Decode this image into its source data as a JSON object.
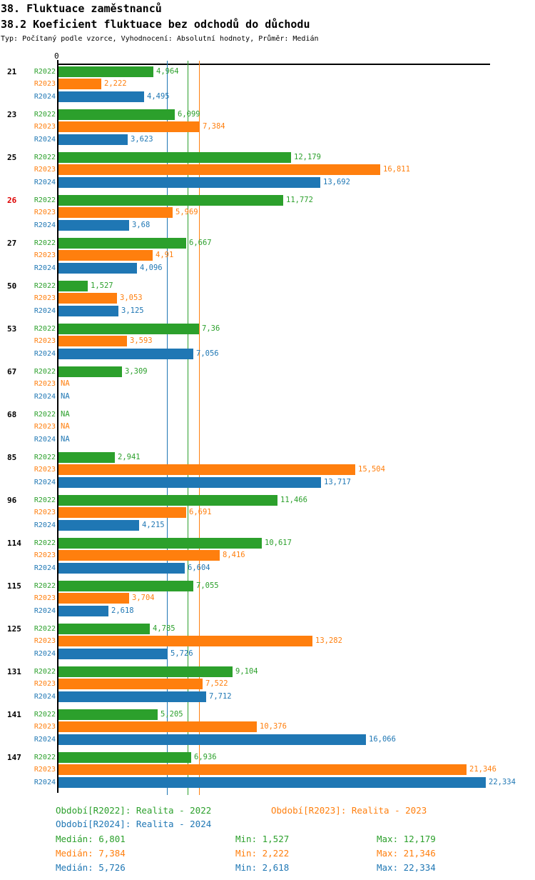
{
  "header": {
    "title": "38. Fluktuace zaměstnanců",
    "subtitle": "38.2 Koeficient fluktuace bez odchodů do důchodu",
    "meta": "Typ: Počítaný podle vzorce, Vyhodnocení: Absolutní hodnoty, Průměr: Medián"
  },
  "colors": {
    "r2022": "#2ca02c",
    "r2023": "#ff7f0e",
    "r2024": "#1f77b4",
    "highlight": "#dd0000",
    "axis": "#000000"
  },
  "chart_data": {
    "type": "bar",
    "orientation": "horizontal",
    "title": "38.2 Koeficient fluktuace bez odchodů do důchodu",
    "axis_zero_label": "0",
    "xlim": [
      0,
      22.6
    ],
    "grid": false,
    "series_names": [
      "R2022",
      "R2023",
      "R2024"
    ],
    "reference_lines": [
      {
        "series_index": 2,
        "value": 5.726,
        "meaning": "Medián R2024"
      },
      {
        "series_index": 0,
        "value": 6.801,
        "meaning": "Medián R2022"
      },
      {
        "series_index": 1,
        "value": 7.384,
        "meaning": "Medián R2023"
      }
    ],
    "groups": [
      {
        "id": "21",
        "highlight": false,
        "values": [
          4.964,
          2.222,
          4.495
        ],
        "labels": [
          "4,964",
          "2,222",
          "4,495"
        ]
      },
      {
        "id": "23",
        "highlight": false,
        "values": [
          6.099,
          7.384,
          3.623
        ],
        "labels": [
          "6,099",
          "7,384",
          "3,623"
        ]
      },
      {
        "id": "25",
        "highlight": false,
        "values": [
          12.179,
          16.811,
          13.692
        ],
        "labels": [
          "12,179",
          "16,811",
          "13,692"
        ]
      },
      {
        "id": "26",
        "highlight": true,
        "values": [
          11.772,
          5.969,
          3.68
        ],
        "labels": [
          "11,772",
          "5,969",
          "3,68"
        ]
      },
      {
        "id": "27",
        "highlight": false,
        "values": [
          6.667,
          4.91,
          4.096
        ],
        "labels": [
          "6,667",
          "4,91",
          "4,096"
        ]
      },
      {
        "id": "50",
        "highlight": false,
        "values": [
          1.527,
          3.053,
          3.125
        ],
        "labels": [
          "1,527",
          "3,053",
          "3,125"
        ]
      },
      {
        "id": "53",
        "highlight": false,
        "values": [
          7.36,
          3.593,
          7.056
        ],
        "labels": [
          "7,36",
          "3,593",
          "7,056"
        ]
      },
      {
        "id": "67",
        "highlight": false,
        "values": [
          3.309,
          null,
          null
        ],
        "labels": [
          "3,309",
          "NA",
          "NA"
        ]
      },
      {
        "id": "68",
        "highlight": false,
        "values": [
          null,
          null,
          null
        ],
        "labels": [
          "NA",
          "NA",
          "NA"
        ]
      },
      {
        "id": "85",
        "highlight": false,
        "values": [
          2.941,
          15.504,
          13.717
        ],
        "labels": [
          "2,941",
          "15,504",
          "13,717"
        ]
      },
      {
        "id": "96",
        "highlight": false,
        "values": [
          11.466,
          6.691,
          4.215
        ],
        "labels": [
          "11,466",
          "6,691",
          "4,215"
        ]
      },
      {
        "id": "114",
        "highlight": false,
        "values": [
          10.617,
          8.416,
          6.604
        ],
        "labels": [
          "10,617",
          "8,416",
          "6,604"
        ]
      },
      {
        "id": "115",
        "highlight": false,
        "values": [
          7.055,
          3.704,
          2.618
        ],
        "labels": [
          "7,055",
          "3,704",
          "2,618"
        ]
      },
      {
        "id": "125",
        "highlight": false,
        "values": [
          4.785,
          13.282,
          5.726
        ],
        "labels": [
          "4,785",
          "13,282",
          "5,726"
        ]
      },
      {
        "id": "131",
        "highlight": false,
        "values": [
          9.104,
          7.522,
          7.712
        ],
        "labels": [
          "9,104",
          "7,522",
          "7,712"
        ]
      },
      {
        "id": "141",
        "highlight": false,
        "values": [
          5.205,
          10.376,
          16.066
        ],
        "labels": [
          "5,205",
          "10,376",
          "16,066"
        ]
      },
      {
        "id": "147",
        "highlight": false,
        "values": [
          6.936,
          21.346,
          22.334
        ],
        "labels": [
          "6,936",
          "21,346",
          "22,334"
        ]
      }
    ]
  },
  "footer": {
    "legend": [
      {
        "text": "Období[R2022]: Realita - 2022",
        "series": "r2022"
      },
      {
        "text": "Období[R2023]: Realita - 2023",
        "series": "r2023"
      },
      {
        "text": "Období[R2024]: Realita - 2024",
        "series": "r2024"
      }
    ],
    "stats": [
      {
        "series": "r2022",
        "median": "Medián: 6,801",
        "min": "Min: 1,527",
        "max": "Max: 12,179"
      },
      {
        "series": "r2023",
        "median": "Medián: 7,384",
        "min": "Min: 2,222",
        "max": "Max: 21,346"
      },
      {
        "series": "r2024",
        "median": "Medián: 5,726",
        "min": "Min: 2,618",
        "max": "Max: 22,334"
      }
    ]
  }
}
